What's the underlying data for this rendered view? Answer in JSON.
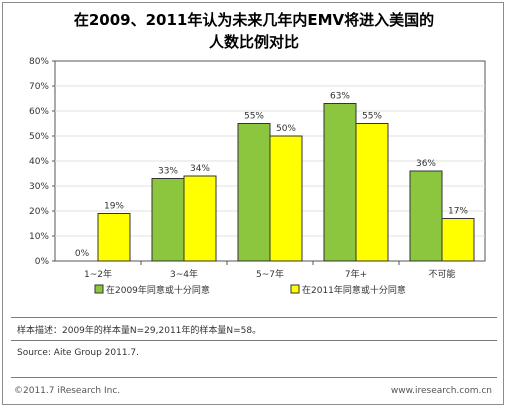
{
  "title": {
    "line1": "在2009、2011年认为未来几年内EMV将进入美国的",
    "line2": "人数比例对比"
  },
  "colors": {
    "series1": "#8cc63e",
    "series2": "#ffff00",
    "bar_stroke": "#333333",
    "grid": "#e0e0e0"
  },
  "chart_data": {
    "type": "bar",
    "categories": [
      "1~2年",
      "3~4年",
      "5~7年",
      "7年+",
      "不可能"
    ],
    "series": [
      {
        "name": "在2009年同意或十分同意",
        "values": [
          0,
          33,
          55,
          63,
          36
        ],
        "labels": [
          "0%",
          "33%",
          "55%",
          "63%",
          "36%"
        ]
      },
      {
        "name": "在2011年同意或十分同意",
        "values": [
          19,
          34,
          50,
          55,
          17
        ],
        "labels": [
          "19%",
          "34%",
          "50%",
          "55%",
          "17%"
        ]
      }
    ],
    "ylim": [
      0,
      80
    ],
    "yticks": [
      "0%",
      "10%",
      "20%",
      "30%",
      "40%",
      "50%",
      "60%",
      "70%",
      "80%"
    ],
    "grid": true,
    "legend_position": "bottom"
  },
  "notes": {
    "sample": "样本描述：2009年的样本量N=29,2011年的样本量N=58。",
    "source": "Source: Aite Group 2011.7."
  },
  "footer": {
    "copyright": "©2011.7 iResearch Inc.",
    "website": "www.iresearch.com.cn"
  }
}
